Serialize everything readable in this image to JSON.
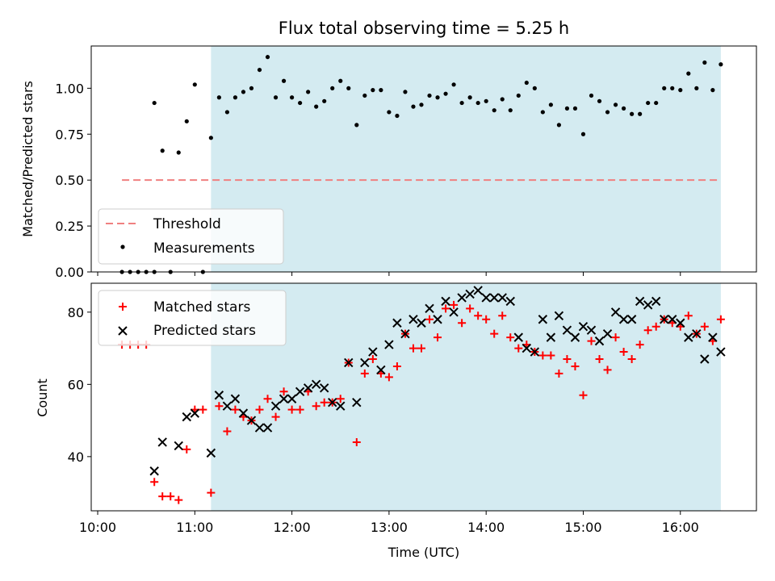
{
  "chart_data": [
    {
      "type": "scatter",
      "title": "Flux total observing time = 5.25 h",
      "ylabel": "Matched/Predicted stars",
      "xlabel": "",
      "ylim": [
        0,
        1.23
      ],
      "yticks": [
        "0.00",
        "0.25",
        "0.50",
        "0.75",
        "1.00"
      ],
      "grid": false,
      "legend_position": "lower-left",
      "shaded_region": {
        "start": "11:10",
        "end": "16:25",
        "color": "#d4ebf1"
      },
      "threshold": {
        "name": "Threshold",
        "value": 0.5,
        "x_start": "10:15",
        "x_end": "16:25",
        "color": "#f08080"
      },
      "series": [
        {
          "name": "Measurements",
          "color": "#000000",
          "marker": "dot",
          "points": [
            [
              "10:15",
              0.0
            ],
            [
              "10:20",
              0.0
            ],
            [
              "10:25",
              0.0
            ],
            [
              "10:30",
              0.0
            ],
            [
              "10:35",
              0.0
            ],
            [
              "10:45",
              0.0
            ],
            [
              "10:35",
              0.92
            ],
            [
              "10:40",
              0.66
            ],
            [
              "10:50",
              0.65
            ],
            [
              "10:55",
              0.82
            ],
            [
              "11:00",
              1.02
            ],
            [
              "11:05",
              0.0
            ],
            [
              "11:10",
              0.73
            ],
            [
              "11:15",
              0.95
            ],
            [
              "11:20",
              0.87
            ],
            [
              "11:25",
              0.95
            ],
            [
              "11:30",
              0.98
            ],
            [
              "11:35",
              1.0
            ],
            [
              "11:40",
              1.1
            ],
            [
              "11:45",
              1.17
            ],
            [
              "11:50",
              0.95
            ],
            [
              "11:55",
              1.04
            ],
            [
              "12:00",
              0.95
            ],
            [
              "12:05",
              0.92
            ],
            [
              "12:10",
              0.98
            ],
            [
              "12:15",
              0.9
            ],
            [
              "12:20",
              0.93
            ],
            [
              "12:25",
              1.0
            ],
            [
              "12:30",
              1.04
            ],
            [
              "12:35",
              1.0
            ],
            [
              "12:40",
              0.8
            ],
            [
              "12:45",
              0.96
            ],
            [
              "12:50",
              0.99
            ],
            [
              "12:55",
              0.99
            ],
            [
              "13:00",
              0.87
            ],
            [
              "13:05",
              0.85
            ],
            [
              "13:10",
              0.98
            ],
            [
              "13:15",
              0.9
            ],
            [
              "13:20",
              0.91
            ],
            [
              "13:25",
              0.96
            ],
            [
              "13:30",
              0.95
            ],
            [
              "13:35",
              0.97
            ],
            [
              "13:40",
              1.02
            ],
            [
              "13:45",
              0.92
            ],
            [
              "13:50",
              0.95
            ],
            [
              "13:55",
              0.92
            ],
            [
              "14:00",
              0.93
            ],
            [
              "14:05",
              0.88
            ],
            [
              "14:10",
              0.94
            ],
            [
              "14:15",
              0.88
            ],
            [
              "14:20",
              0.96
            ],
            [
              "14:25",
              1.03
            ],
            [
              "14:30",
              1.0
            ],
            [
              "14:35",
              0.87
            ],
            [
              "14:40",
              0.91
            ],
            [
              "14:45",
              0.8
            ],
            [
              "14:50",
              0.89
            ],
            [
              "14:55",
              0.89
            ],
            [
              "15:00",
              0.75
            ],
            [
              "15:05",
              0.96
            ],
            [
              "15:10",
              0.93
            ],
            [
              "15:15",
              0.87
            ],
            [
              "15:20",
              0.91
            ],
            [
              "15:25",
              0.89
            ],
            [
              "15:30",
              0.86
            ],
            [
              "15:35",
              0.86
            ],
            [
              "15:40",
              0.92
            ],
            [
              "15:45",
              0.92
            ],
            [
              "15:50",
              1.0
            ],
            [
              "15:55",
              1.0
            ],
            [
              "16:00",
              0.99
            ],
            [
              "16:05",
              1.08
            ],
            [
              "16:10",
              1.0
            ],
            [
              "16:15",
              1.14
            ],
            [
              "16:20",
              0.99
            ],
            [
              "16:25",
              1.13
            ]
          ]
        }
      ]
    },
    {
      "type": "scatter",
      "title": "",
      "ylabel": "Count",
      "xlabel": "Time (UTC)",
      "ylim": [
        25,
        88
      ],
      "yticks": [
        "40",
        "60",
        "80"
      ],
      "xticks": [
        "10:00",
        "11:00",
        "12:00",
        "13:00",
        "14:00",
        "15:00",
        "16:00"
      ],
      "x_domain": [
        "09:56",
        "16:47"
      ],
      "grid": false,
      "legend_position": "top-left",
      "shaded_region": {
        "start": "11:10",
        "end": "16:25",
        "color": "#d4ebf1"
      },
      "series": [
        {
          "name": "Matched stars",
          "color": "#ff0000",
          "marker": "plus",
          "points": [
            [
              "10:15",
              71
            ],
            [
              "10:20",
              71
            ],
            [
              "10:25",
              71
            ],
            [
              "10:30",
              71
            ],
            [
              "10:35",
              33
            ],
            [
              "10:40",
              29
            ],
            [
              "10:45",
              29
            ],
            [
              "10:50",
              28
            ],
            [
              "10:55",
              42
            ],
            [
              "11:00",
              53
            ],
            [
              "11:05",
              53
            ],
            [
              "11:10",
              30
            ],
            [
              "11:15",
              54
            ],
            [
              "11:20",
              47
            ],
            [
              "11:25",
              53
            ],
            [
              "11:30",
              51
            ],
            [
              "11:35",
              50
            ],
            [
              "11:40",
              53
            ],
            [
              "11:45",
              56
            ],
            [
              "11:50",
              51
            ],
            [
              "11:55",
              58
            ],
            [
              "12:00",
              53
            ],
            [
              "12:05",
              53
            ],
            [
              "12:10",
              58
            ],
            [
              "12:15",
              54
            ],
            [
              "12:20",
              55
            ],
            [
              "12:25",
              55
            ],
            [
              "12:30",
              56
            ],
            [
              "12:35",
              66
            ],
            [
              "12:40",
              44
            ],
            [
              "12:45",
              63
            ],
            [
              "12:50",
              67
            ],
            [
              "12:55",
              63
            ],
            [
              "13:00",
              62
            ],
            [
              "13:05",
              65
            ],
            [
              "13:10",
              74
            ],
            [
              "13:15",
              70
            ],
            [
              "13:20",
              70
            ],
            [
              "13:25",
              78
            ],
            [
              "13:30",
              73
            ],
            [
              "13:35",
              81
            ],
            [
              "13:40",
              82
            ],
            [
              "13:45",
              77
            ],
            [
              "13:50",
              81
            ],
            [
              "13:55",
              79
            ],
            [
              "14:00",
              78
            ],
            [
              "14:05",
              74
            ],
            [
              "14:10",
              79
            ],
            [
              "14:15",
              73
            ],
            [
              "14:20",
              70
            ],
            [
              "14:25",
              71
            ],
            [
              "14:30",
              69
            ],
            [
              "14:35",
              68
            ],
            [
              "14:40",
              68
            ],
            [
              "14:45",
              63
            ],
            [
              "14:50",
              67
            ],
            [
              "14:55",
              65
            ],
            [
              "15:00",
              57
            ],
            [
              "15:05",
              72
            ],
            [
              "15:10",
              67
            ],
            [
              "15:15",
              64
            ],
            [
              "15:20",
              73
            ],
            [
              "15:25",
              69
            ],
            [
              "15:30",
              67
            ],
            [
              "15:35",
              71
            ],
            [
              "15:40",
              75
            ],
            [
              "15:45",
              76
            ],
            [
              "15:50",
              78
            ],
            [
              "15:55",
              77
            ],
            [
              "16:00",
              76
            ],
            [
              "16:05",
              79
            ],
            [
              "16:10",
              74
            ],
            [
              "16:15",
              76
            ],
            [
              "16:20",
              72
            ],
            [
              "16:25",
              78
            ]
          ]
        },
        {
          "name": "Predicted stars",
          "color": "#000000",
          "marker": "x",
          "points": [
            [
              "10:35",
              36
            ],
            [
              "10:40",
              44
            ],
            [
              "10:50",
              43
            ],
            [
              "10:55",
              51
            ],
            [
              "11:00",
              52
            ],
            [
              "11:10",
              41
            ],
            [
              "11:15",
              57
            ],
            [
              "11:20",
              54
            ],
            [
              "11:25",
              56
            ],
            [
              "11:30",
              52
            ],
            [
              "11:35",
              50
            ],
            [
              "11:40",
              48
            ],
            [
              "11:45",
              48
            ],
            [
              "11:50",
              54
            ],
            [
              "11:55",
              56
            ],
            [
              "12:00",
              56
            ],
            [
              "12:05",
              58
            ],
            [
              "12:10",
              59
            ],
            [
              "12:15",
              60
            ],
            [
              "12:20",
              59
            ],
            [
              "12:25",
              55
            ],
            [
              "12:30",
              54
            ],
            [
              "12:35",
              66
            ],
            [
              "12:40",
              55
            ],
            [
              "12:45",
              66
            ],
            [
              "12:50",
              69
            ],
            [
              "12:55",
              64
            ],
            [
              "13:00",
              71
            ],
            [
              "13:05",
              77
            ],
            [
              "13:10",
              74
            ],
            [
              "13:15",
              78
            ],
            [
              "13:20",
              77
            ],
            [
              "13:25",
              81
            ],
            [
              "13:30",
              78
            ],
            [
              "13:35",
              83
            ],
            [
              "13:40",
              80
            ],
            [
              "13:45",
              84
            ],
            [
              "13:50",
              85
            ],
            [
              "13:55",
              86
            ],
            [
              "14:00",
              84
            ],
            [
              "14:05",
              84
            ],
            [
              "14:10",
              84
            ],
            [
              "14:15",
              83
            ],
            [
              "14:20",
              73
            ],
            [
              "14:25",
              70
            ],
            [
              "14:30",
              69
            ],
            [
              "14:35",
              78
            ],
            [
              "14:40",
              73
            ],
            [
              "14:45",
              79
            ],
            [
              "14:50",
              75
            ],
            [
              "14:55",
              73
            ],
            [
              "15:00",
              76
            ],
            [
              "15:05",
              75
            ],
            [
              "15:10",
              72
            ],
            [
              "15:15",
              74
            ],
            [
              "15:20",
              80
            ],
            [
              "15:25",
              78
            ],
            [
              "15:30",
              78
            ],
            [
              "15:35",
              83
            ],
            [
              "15:40",
              82
            ],
            [
              "15:45",
              83
            ],
            [
              "15:50",
              78
            ],
            [
              "15:55",
              78
            ],
            [
              "16:00",
              77
            ],
            [
              "16:05",
              73
            ],
            [
              "16:10",
              74
            ],
            [
              "16:15",
              67
            ],
            [
              "16:20",
              73
            ],
            [
              "16:25",
              69
            ]
          ]
        }
      ]
    }
  ]
}
